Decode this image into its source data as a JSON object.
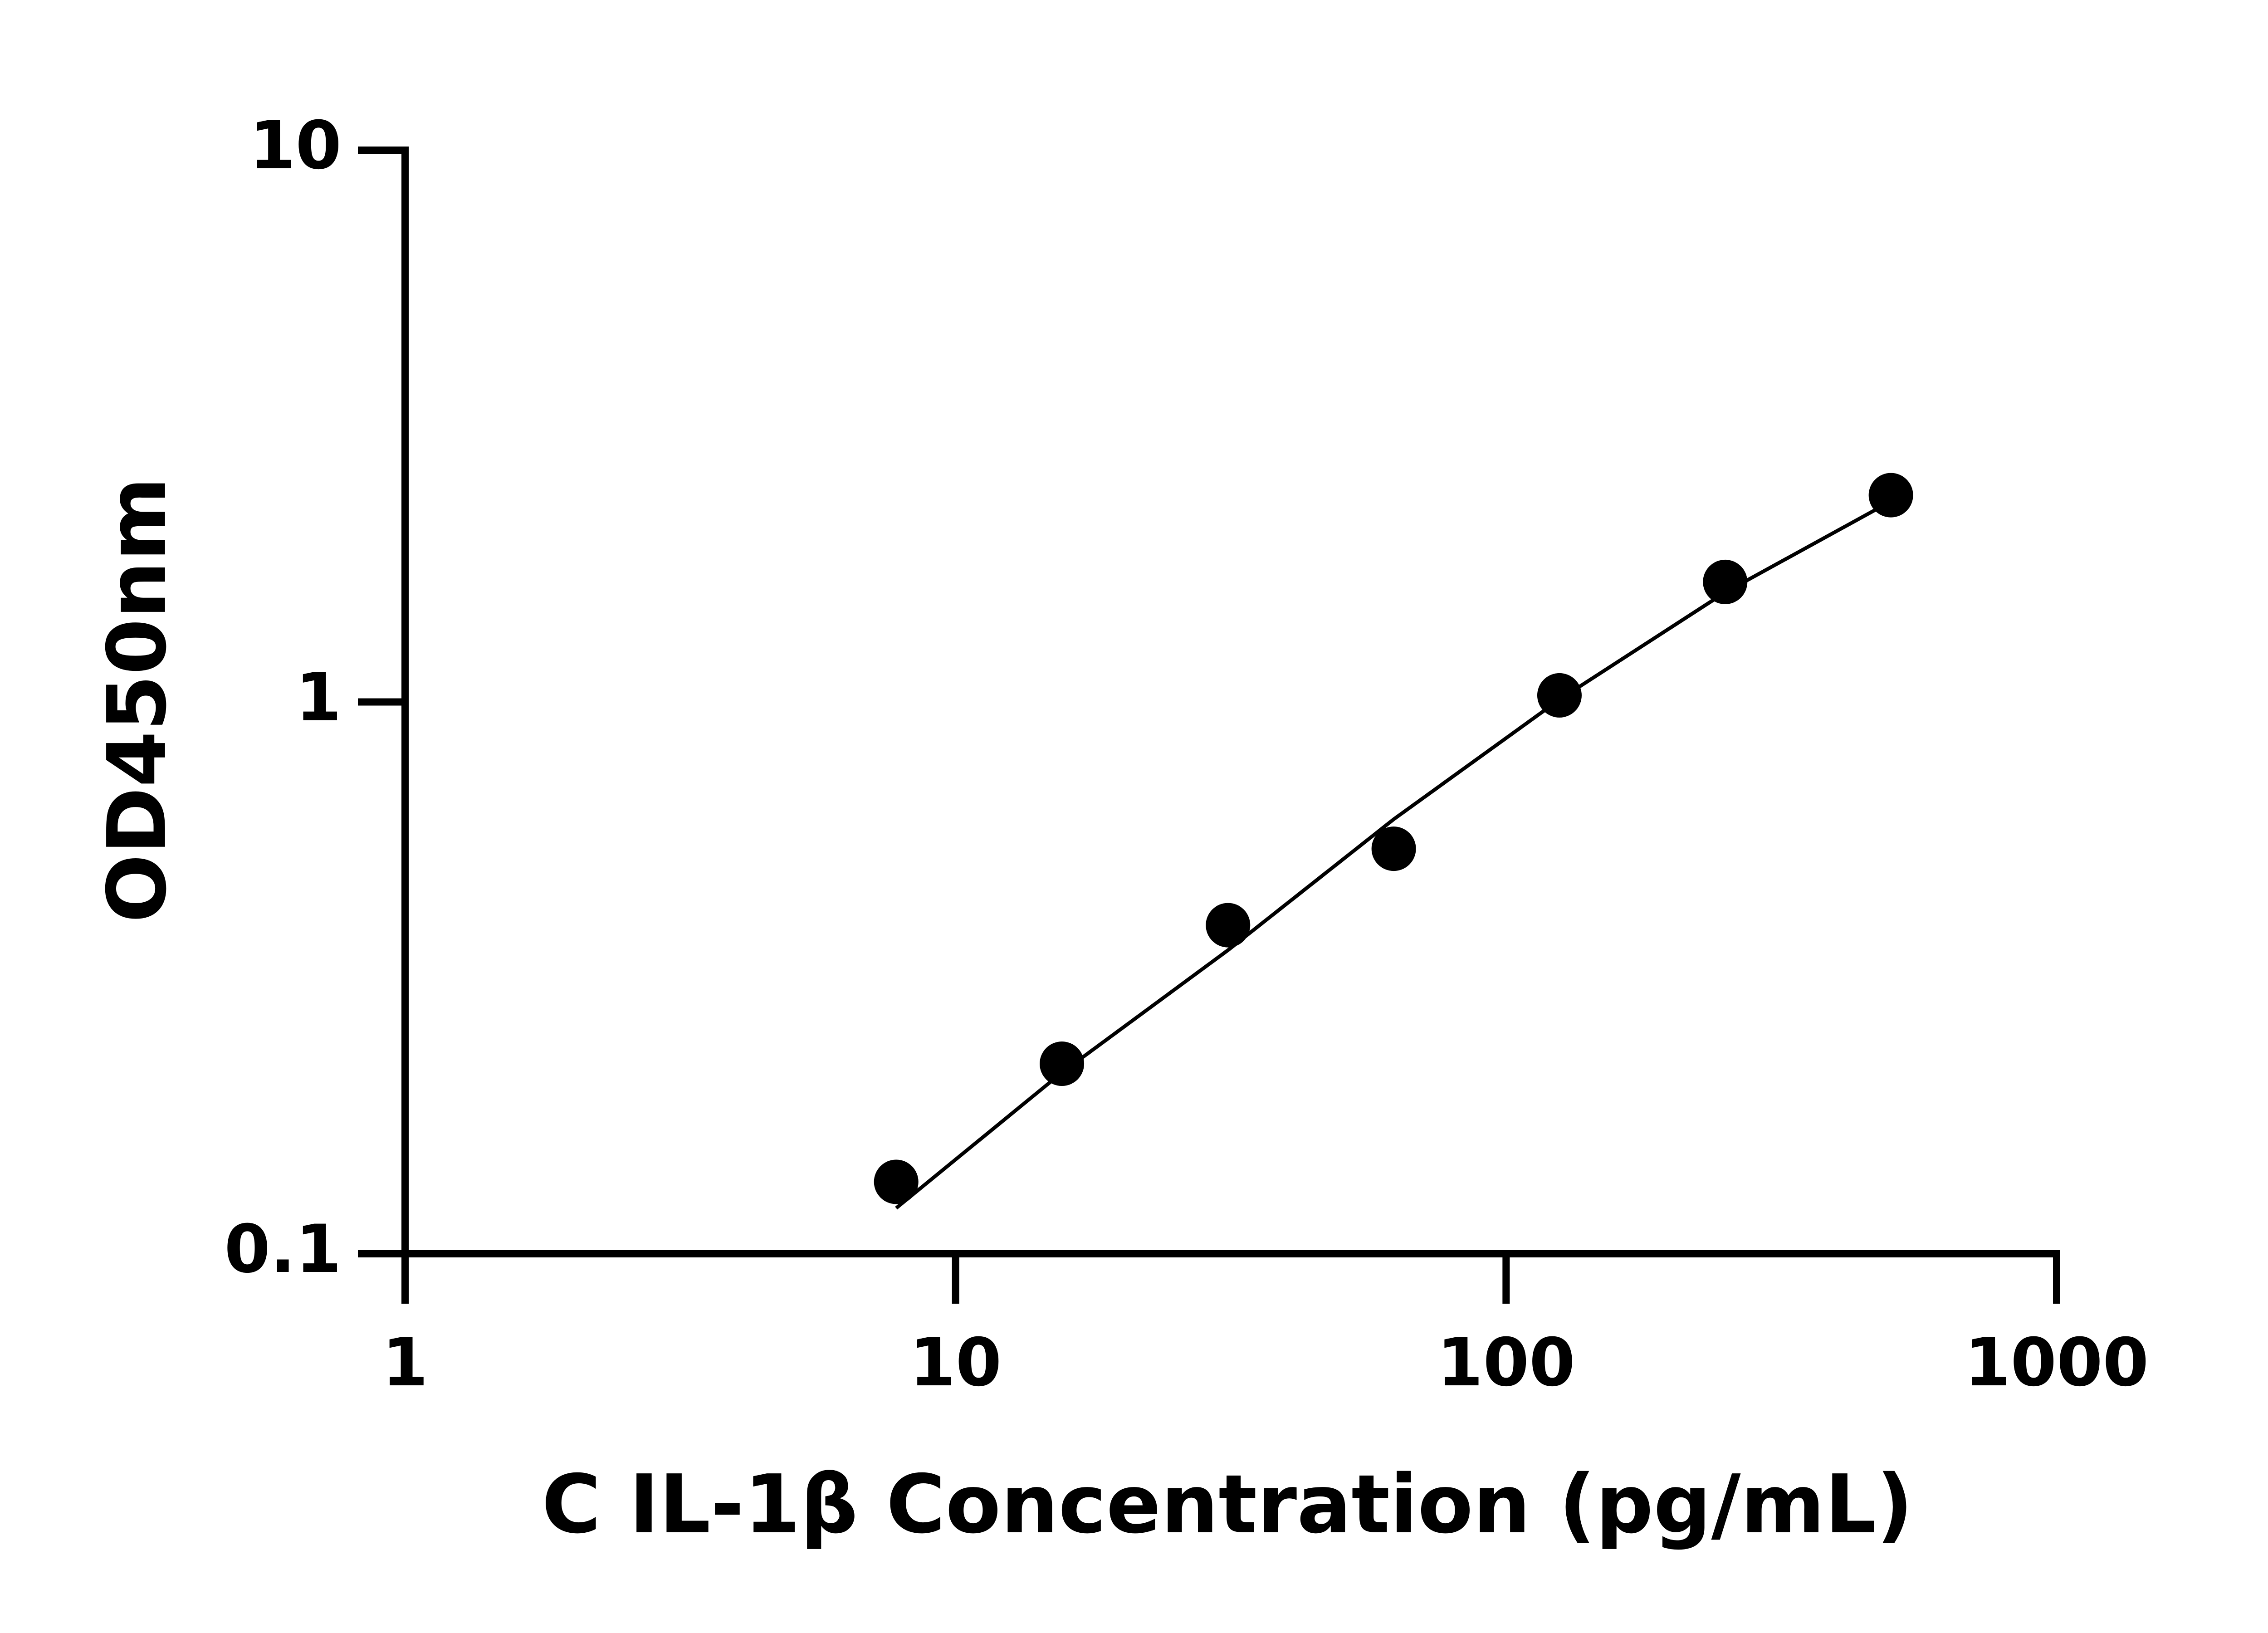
{
  "chart_data": {
    "type": "scatter",
    "x_label": "C IL-1β Concentration (pg/mL)",
    "y_label": "OD450nm",
    "xscale": "log",
    "yscale": "log",
    "xlim": [
      1,
      1000
    ],
    "ylim": [
      0.1,
      10
    ],
    "xticks": [
      1,
      10,
      100,
      1000
    ],
    "yticks": [
      0.1,
      1,
      10
    ],
    "color": "#000000",
    "series": [
      {
        "x": [
          7.8,
          15.6,
          31.25,
          62.5,
          125,
          250,
          500
        ],
        "values": [
          0.135,
          0.221,
          0.394,
          0.542,
          1.028,
          1.65,
          2.37
        ]
      },
      {
        "x": [
          7.8,
          15.6,
          31.25,
          62.5,
          125,
          250,
          500
        ],
        "values": [
          0.121,
          0.213,
          0.355,
          0.613,
          1.01,
          1.58,
          2.31
        ]
      }
    ]
  }
}
